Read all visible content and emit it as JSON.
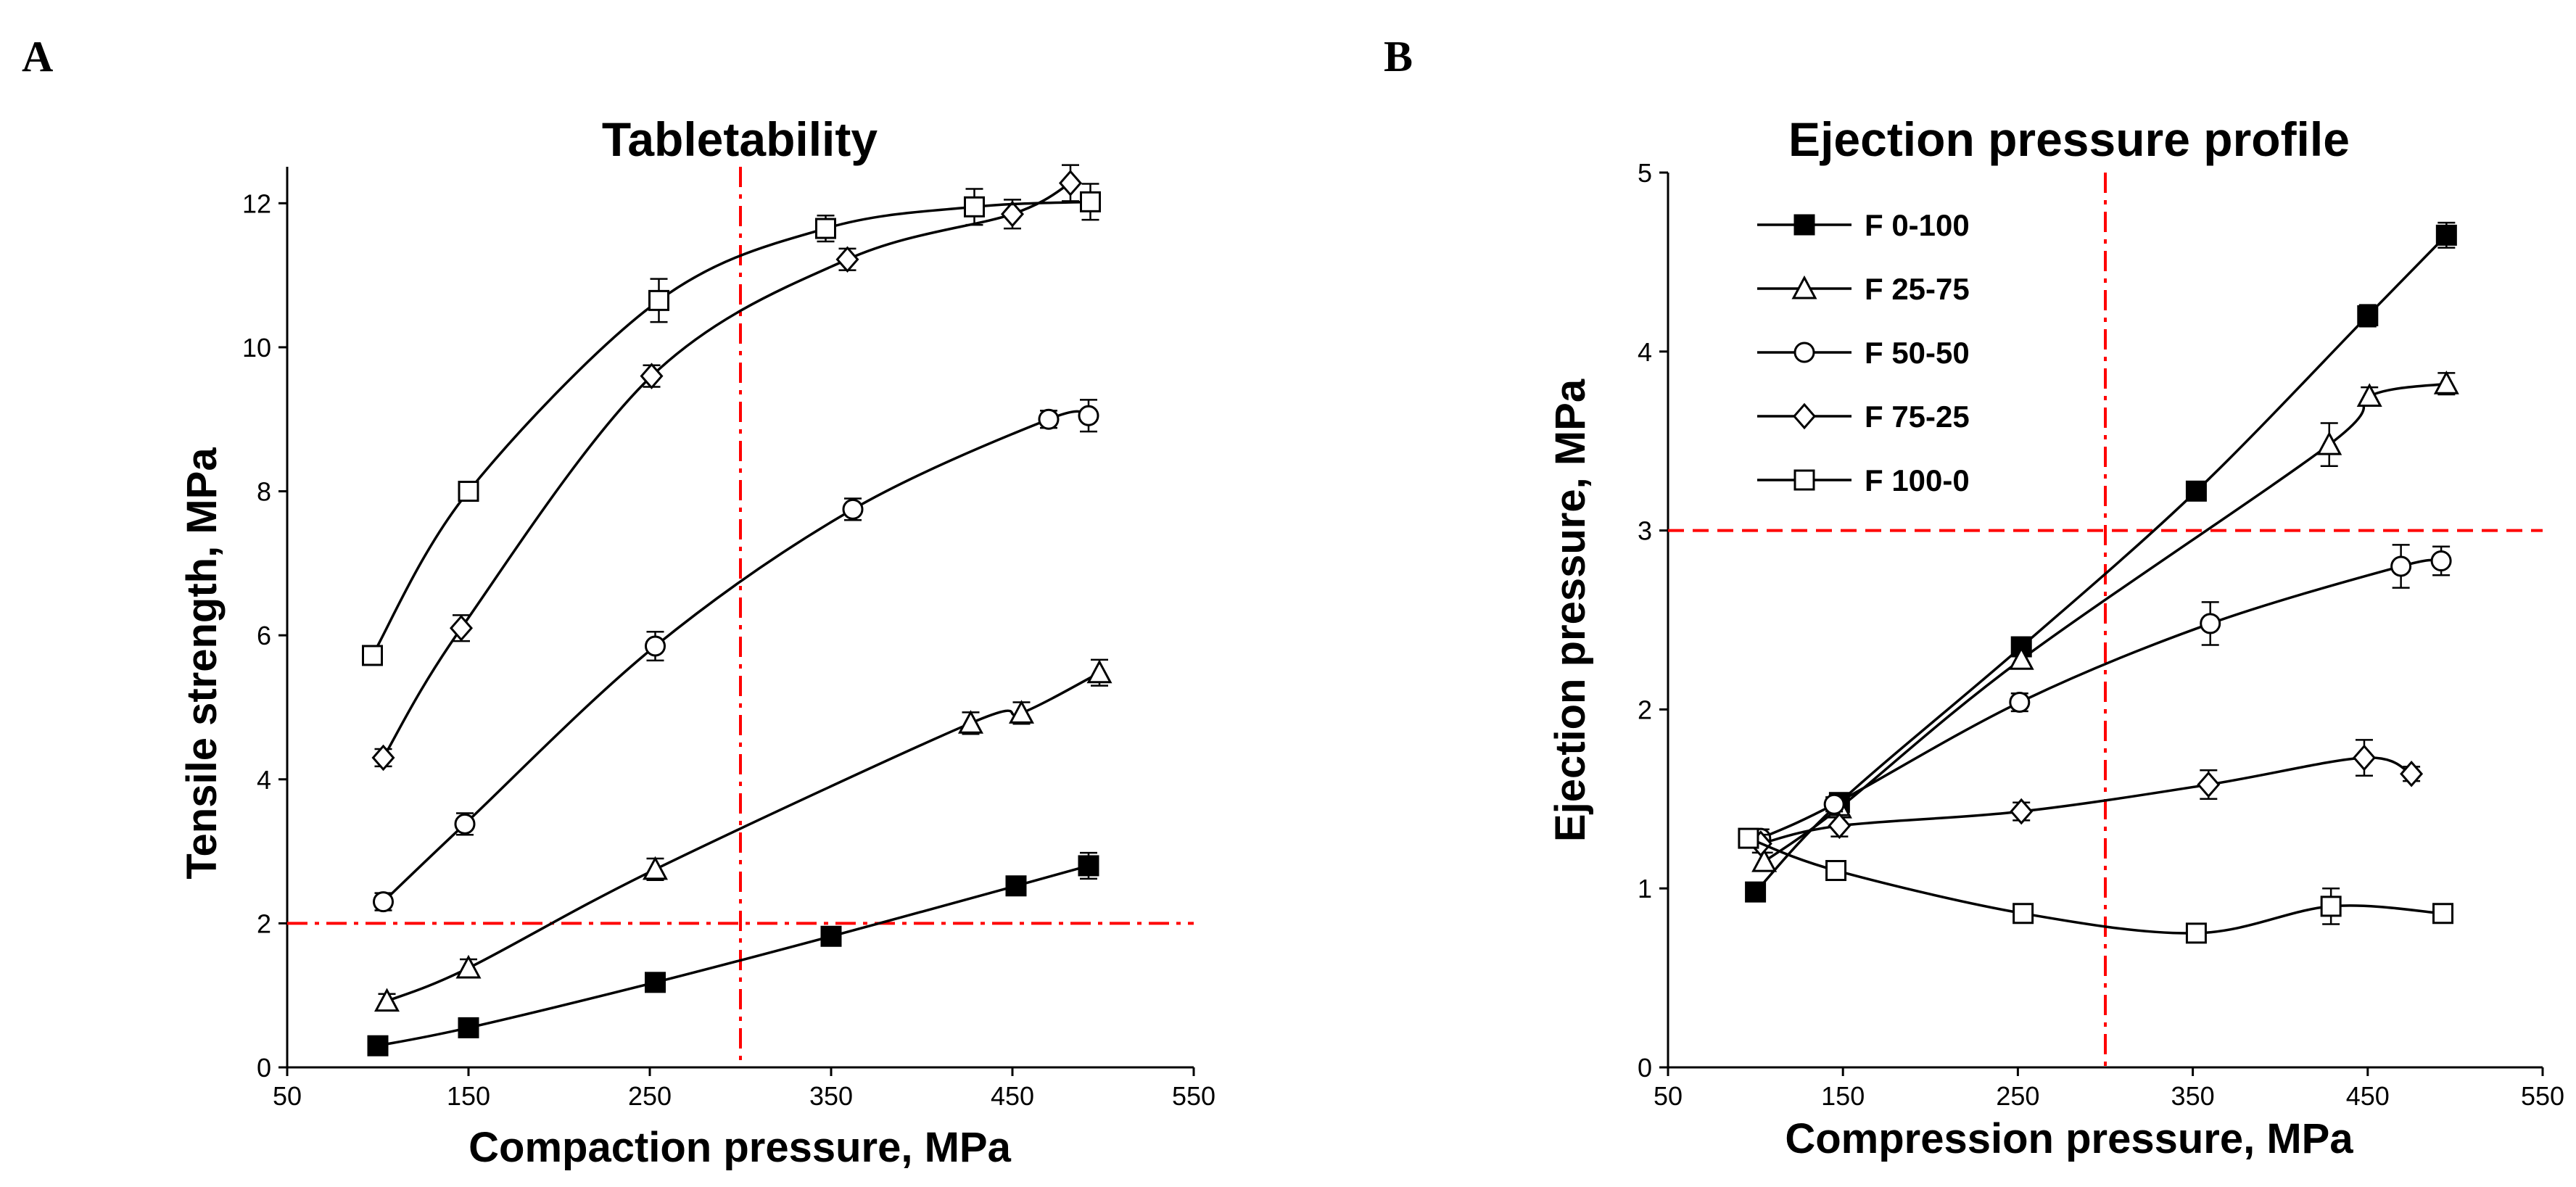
{
  "chart_data": [
    {
      "panel": "A",
      "type": "line",
      "title": "Tabletability",
      "xlabel": "Compaction pressure, MPa",
      "ylabel": "Tensile strength, MPa",
      "xlim": [
        50,
        550
      ],
      "ylim": [
        0,
        13
      ],
      "xticks": [
        "50",
        "150",
        "250",
        "350",
        "450",
        "550"
      ],
      "yticks": [
        "0",
        "2",
        "4",
        "6",
        "8",
        "10",
        "12"
      ],
      "reference_lines": {
        "x": 300,
        "y": 2,
        "color": "#ff0000",
        "style": "dash-dot"
      },
      "series": [
        {
          "name": "F 0-100",
          "marker": "filled-square",
          "points": [
            [
              100,
              0.3
            ],
            [
              150,
              0.55
            ],
            [
              253,
              1.18
            ],
            [
              350,
              1.82
            ],
            [
              452,
              2.52
            ],
            [
              492,
              2.8
            ]
          ],
          "errors": [
            0.1,
            0.1,
            0.12,
            0.1,
            0.12,
            0.18
          ]
        },
        {
          "name": "F 25-75",
          "marker": "triangle",
          "points": [
            [
              105,
              0.92
            ],
            [
              150,
              1.38
            ],
            [
              253,
              2.75
            ],
            [
              427,
              4.78
            ],
            [
              455,
              4.92
            ],
            [
              498,
              5.48
            ]
          ],
          "errors": [
            0.1,
            0.12,
            0.15,
            0.15,
            0.15,
            0.18
          ]
        },
        {
          "name": "F 50-50",
          "marker": "circle",
          "points": [
            [
              103,
              2.3
            ],
            [
              148,
              3.38
            ],
            [
              253,
              5.85
            ],
            [
              362,
              7.75
            ],
            [
              470,
              9.0
            ],
            [
              492,
              9.05
            ]
          ],
          "errors": [
            0.12,
            0.15,
            0.2,
            0.15,
            0.12,
            0.22
          ]
        },
        {
          "name": "F 75-25",
          "marker": "diamond",
          "points": [
            [
              103,
              4.3
            ],
            [
              146,
              6.1
            ],
            [
              251,
              9.6
            ],
            [
              359,
              11.22
            ],
            [
              450,
              11.85
            ],
            [
              482,
              12.28
            ]
          ],
          "errors": [
            0.12,
            0.18,
            0.15,
            0.15,
            0.2,
            0.25
          ]
        },
        {
          "name": "F 100-0",
          "marker": "open-square",
          "points": [
            [
              97,
              5.72
            ],
            [
              150,
              8.0
            ],
            [
              255,
              10.65
            ],
            [
              347,
              11.65
            ],
            [
              429,
              11.95
            ],
            [
              493,
              12.02
            ]
          ],
          "errors": [
            0.12,
            0.12,
            0.3,
            0.18,
            0.25,
            0.25
          ]
        }
      ]
    },
    {
      "panel": "B",
      "type": "line",
      "title": "Ejection pressure profile",
      "xlabel": "Compression pressure, MPa",
      "ylabel": "Ejection pressure, MPa",
      "xlim": [
        50,
        550
      ],
      "ylim": [
        0,
        5
      ],
      "xticks": [
        "50",
        "150",
        "250",
        "350",
        "450",
        "550"
      ],
      "yticks": [
        "0",
        "1",
        "2",
        "3",
        "4",
        "5"
      ],
      "reference_lines": {
        "x": 300,
        "y": 3,
        "color": "#ff0000",
        "style": "dash"
      },
      "legend_position": "top-left",
      "legend": [
        "F 0-100",
        "F 25-75",
        "F 50-50",
        "F 75-25",
        "F 100-0"
      ],
      "series": [
        {
          "name": "F 0-100",
          "marker": "filled-square",
          "points": [
            [
              100,
              0.98
            ],
            [
              148,
              1.48
            ],
            [
              252,
              2.35
            ],
            [
              352,
              3.22
            ],
            [
              450,
              4.2
            ],
            [
              495,
              4.65
            ]
          ],
          "errors": [
            0.04,
            0.04,
            0.05,
            0.04,
            0.06,
            0.07
          ]
        },
        {
          "name": "F 25-75",
          "marker": "triangle",
          "points": [
            [
              105,
              1.15
            ],
            [
              148,
              1.45
            ],
            [
              252,
              2.28
            ],
            [
              428,
              3.48
            ],
            [
              451,
              3.75
            ],
            [
              495,
              3.82
            ]
          ],
          "errors": [
            0.05,
            0.05,
            0.05,
            0.12,
            0.05,
            0.06
          ]
        },
        {
          "name": "F 50-50",
          "marker": "circle",
          "points": [
            [
              103,
              1.28
            ],
            [
              145,
              1.47
            ],
            [
              251,
              2.04
            ],
            [
              360,
              2.48
            ],
            [
              469,
              2.8
            ],
            [
              492,
              2.83
            ]
          ],
          "errors": [
            0.05,
            0.04,
            0.05,
            0.12,
            0.12,
            0.08
          ]
        },
        {
          "name": "F 75-25",
          "marker": "diamond",
          "points": [
            [
              103,
              1.25
            ],
            [
              148,
              1.35
            ],
            [
              252,
              1.43
            ],
            [
              359,
              1.58
            ],
            [
              448,
              1.73
            ],
            [
              475,
              1.64
            ]
          ],
          "errors": [
            0.05,
            0.06,
            0.05,
            0.08,
            0.1,
            0.04
          ]
        },
        {
          "name": "F 100-0",
          "marker": "open-square",
          "points": [
            [
              96,
              1.28
            ],
            [
              146,
              1.1
            ],
            [
              253,
              0.86
            ],
            [
              352,
              0.75
            ],
            [
              429,
              0.9
            ],
            [
              493,
              0.86
            ]
          ],
          "errors": [
            0.05,
            0.05,
            0.04,
            0.04,
            0.1,
            0.04
          ]
        }
      ]
    }
  ]
}
